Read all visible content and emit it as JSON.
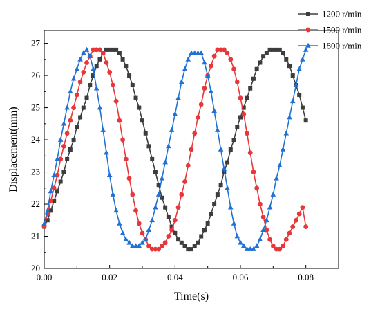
{
  "chart_data": {
    "type": "line",
    "title": "",
    "xlabel": "Time(s)",
    "ylabel": "Displacement(mm)",
    "xlim": [
      0.0,
      0.09
    ],
    "ylim": [
      20,
      27.4
    ],
    "x_ticks": [
      "0.00",
      "0.02",
      "0.04",
      "0.06",
      "0.08"
    ],
    "x_tick_values": [
      0.0,
      0.02,
      0.04,
      0.06,
      0.08
    ],
    "y_ticks": [
      "20",
      "21",
      "22",
      "23",
      "24",
      "25",
      "26",
      "27"
    ],
    "y_tick_values": [
      20,
      21,
      22,
      23,
      24,
      25,
      26,
      27
    ],
    "grid": false,
    "legend_position": "top-right",
    "series": [
      {
        "name": "1200 r/min",
        "color": "#3d3d3d",
        "marker": "square",
        "x": [
          0.0,
          0.001,
          0.002,
          0.003,
          0.004,
          0.005,
          0.006,
          0.007,
          0.008,
          0.009,
          0.01,
          0.011,
          0.012,
          0.013,
          0.014,
          0.015,
          0.016,
          0.017,
          0.018,
          0.019,
          0.02,
          0.021,
          0.022,
          0.023,
          0.024,
          0.025,
          0.026,
          0.027,
          0.028,
          0.029,
          0.03,
          0.031,
          0.032,
          0.033,
          0.034,
          0.035,
          0.036,
          0.037,
          0.038,
          0.039,
          0.04,
          0.041,
          0.042,
          0.043,
          0.044,
          0.045,
          0.046,
          0.047,
          0.048,
          0.049,
          0.05,
          0.051,
          0.052,
          0.053,
          0.054,
          0.055,
          0.056,
          0.057,
          0.058,
          0.059,
          0.06,
          0.061,
          0.062,
          0.063,
          0.064,
          0.065,
          0.066,
          0.067,
          0.068,
          0.069,
          0.07,
          0.071,
          0.072,
          0.073,
          0.074,
          0.075,
          0.076,
          0.077,
          0.078,
          0.079,
          0.08
        ],
        "values": [
          21.3,
          21.5,
          21.8,
          22.1,
          22.4,
          22.7,
          23.0,
          23.4,
          23.7,
          24.0,
          24.4,
          24.7,
          25.0,
          25.3,
          25.7,
          26.0,
          26.3,
          26.5,
          26.7,
          26.8,
          26.8,
          26.8,
          26.8,
          26.7,
          26.5,
          26.3,
          26.0,
          25.7,
          25.3,
          25.0,
          24.6,
          24.2,
          23.8,
          23.4,
          23.0,
          22.6,
          22.2,
          21.9,
          21.6,
          21.3,
          21.1,
          20.9,
          20.8,
          20.7,
          20.6,
          20.6,
          20.7,
          20.8,
          21.0,
          21.2,
          21.4,
          21.7,
          22.0,
          22.3,
          22.6,
          23.0,
          23.3,
          23.7,
          24.0,
          24.4,
          24.7,
          25.0,
          25.3,
          25.6,
          25.9,
          26.2,
          26.4,
          26.6,
          26.7,
          26.8,
          26.8,
          26.8,
          26.8,
          26.7,
          26.5,
          26.3,
          26.0,
          25.7,
          25.4,
          25.0,
          24.6
        ]
      },
      {
        "name": "1500 r/min",
        "color": "#e8373a",
        "marker": "circle",
        "x": [
          0.0,
          0.001,
          0.002,
          0.003,
          0.004,
          0.005,
          0.006,
          0.007,
          0.008,
          0.009,
          0.01,
          0.011,
          0.012,
          0.013,
          0.014,
          0.015,
          0.016,
          0.017,
          0.018,
          0.019,
          0.02,
          0.021,
          0.022,
          0.023,
          0.024,
          0.025,
          0.026,
          0.027,
          0.028,
          0.029,
          0.03,
          0.031,
          0.032,
          0.033,
          0.034,
          0.035,
          0.036,
          0.037,
          0.038,
          0.039,
          0.04,
          0.041,
          0.042,
          0.043,
          0.044,
          0.045,
          0.046,
          0.047,
          0.048,
          0.049,
          0.05,
          0.051,
          0.052,
          0.053,
          0.054,
          0.055,
          0.056,
          0.057,
          0.058,
          0.059,
          0.06,
          0.061,
          0.062,
          0.063,
          0.064,
          0.065,
          0.066,
          0.067,
          0.068,
          0.069,
          0.07,
          0.071,
          0.072,
          0.073,
          0.074,
          0.075,
          0.076,
          0.077,
          0.078,
          0.079,
          0.08
        ],
        "values": [
          21.3,
          21.7,
          22.1,
          22.5,
          22.9,
          23.4,
          23.8,
          24.2,
          24.6,
          25.0,
          25.4,
          25.8,
          26.1,
          26.4,
          26.6,
          26.8,
          26.8,
          26.8,
          26.7,
          26.4,
          26.1,
          25.7,
          25.2,
          24.6,
          24.0,
          23.4,
          22.8,
          22.3,
          21.8,
          21.4,
          21.1,
          20.9,
          20.7,
          20.6,
          20.6,
          20.6,
          20.7,
          20.8,
          21.0,
          21.2,
          21.5,
          21.9,
          22.3,
          22.7,
          23.2,
          23.7,
          24.2,
          24.7,
          25.1,
          25.6,
          26.0,
          26.3,
          26.6,
          26.8,
          26.8,
          26.8,
          26.7,
          26.5,
          26.2,
          25.8,
          25.3,
          24.8,
          24.2,
          23.6,
          23.0,
          22.5,
          22.0,
          21.6,
          21.2,
          20.9,
          20.7,
          20.6,
          20.6,
          20.7,
          20.9,
          21.1,
          21.3,
          21.5,
          21.7,
          21.9,
          21.3
        ]
      },
      {
        "name": "1800 r/min",
        "color": "#1f72d4",
        "marker": "triangle",
        "x": [
          0.0,
          0.001,
          0.002,
          0.003,
          0.004,
          0.005,
          0.006,
          0.007,
          0.008,
          0.009,
          0.01,
          0.011,
          0.012,
          0.013,
          0.014,
          0.015,
          0.016,
          0.017,
          0.018,
          0.019,
          0.02,
          0.021,
          0.022,
          0.023,
          0.024,
          0.025,
          0.026,
          0.027,
          0.028,
          0.029,
          0.03,
          0.031,
          0.032,
          0.033,
          0.034,
          0.035,
          0.036,
          0.037,
          0.038,
          0.039,
          0.04,
          0.041,
          0.042,
          0.043,
          0.044,
          0.045,
          0.046,
          0.047,
          0.048,
          0.049,
          0.05,
          0.051,
          0.052,
          0.053,
          0.054,
          0.055,
          0.056,
          0.057,
          0.058,
          0.059,
          0.06,
          0.061,
          0.062,
          0.063,
          0.064,
          0.065,
          0.066,
          0.067,
          0.068,
          0.069,
          0.07,
          0.071,
          0.072,
          0.073,
          0.074,
          0.075,
          0.076,
          0.077,
          0.078,
          0.079,
          0.08
        ],
        "values": [
          21.4,
          21.8,
          22.4,
          22.9,
          23.4,
          24.0,
          24.5,
          25.0,
          25.5,
          25.9,
          26.2,
          26.5,
          26.7,
          26.8,
          26.6,
          26.2,
          25.6,
          25.0,
          24.3,
          23.6,
          22.9,
          22.3,
          21.8,
          21.4,
          21.1,
          20.9,
          20.8,
          20.7,
          20.7,
          20.7,
          20.8,
          20.9,
          21.2,
          21.5,
          21.9,
          22.3,
          22.8,
          23.3,
          23.8,
          24.3,
          24.8,
          25.3,
          25.8,
          26.2,
          26.5,
          26.7,
          26.7,
          26.7,
          26.7,
          26.4,
          26.0,
          25.5,
          24.9,
          24.3,
          23.7,
          23.1,
          22.5,
          21.9,
          21.4,
          21.0,
          20.8,
          20.7,
          20.6,
          20.6,
          20.6,
          20.7,
          20.9,
          21.2,
          21.5,
          21.9,
          22.3,
          22.8,
          23.2,
          23.7,
          24.2,
          24.7,
          25.2,
          25.7,
          26.2,
          26.5,
          26.8
        ]
      }
    ]
  }
}
